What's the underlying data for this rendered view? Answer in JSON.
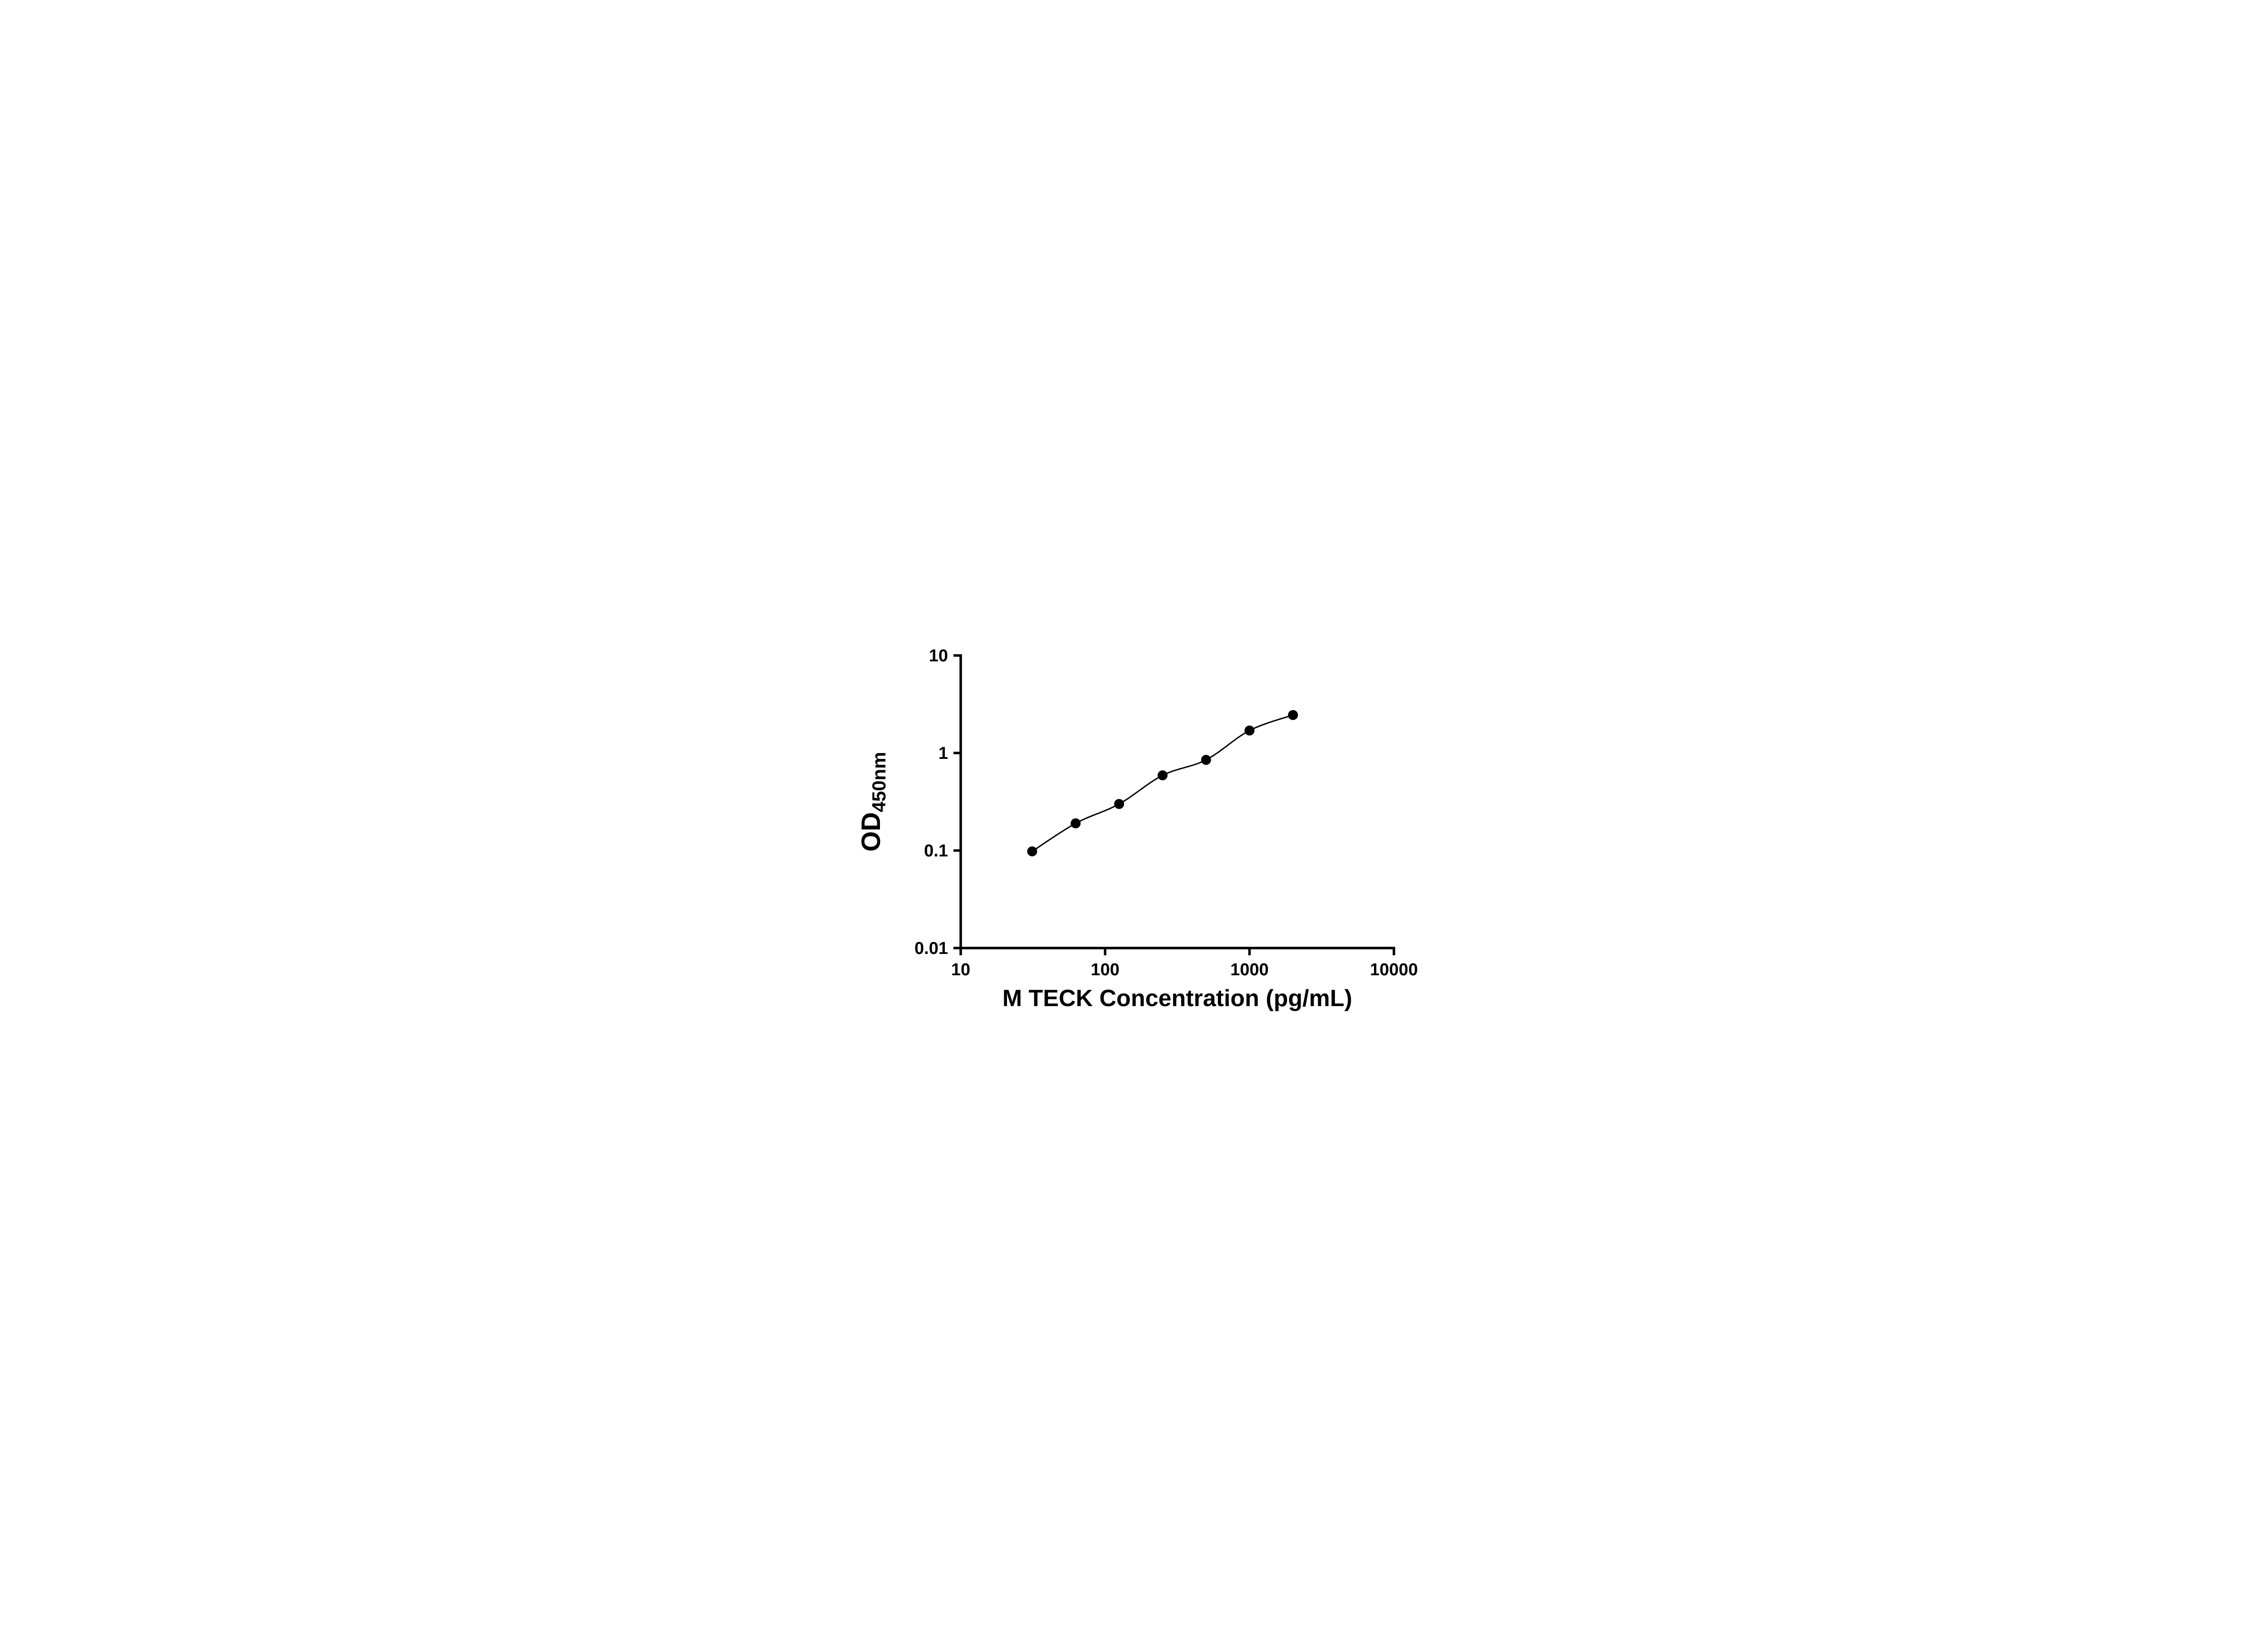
{
  "figure": {
    "background": "#ffffff",
    "axis_color": "#000000",
    "accessible_title": "M TECK ELISA standard curve"
  },
  "chart_data": {
    "type": "scatter",
    "title": "",
    "xlabel": "M TECK Concentration (pg/mL)",
    "ylabel": "OD450nm",
    "ylabel_parts": {
      "main": "OD",
      "sub": "450nm"
    },
    "x_scale": "log",
    "y_scale": "log",
    "xlim": [
      10,
      10000
    ],
    "ylim": [
      0.01,
      10
    ],
    "x_ticks": [
      10,
      100,
      1000,
      10000
    ],
    "x_tick_labels": [
      "10",
      "100",
      "1000",
      "10000"
    ],
    "y_ticks": [
      0.01,
      0.1,
      1,
      10
    ],
    "y_tick_labels": [
      "0.01",
      "0.1",
      "1",
      "10"
    ],
    "grid": false,
    "legend": "none",
    "has_fit_line": true,
    "marker_color": "#000000",
    "line_color": "#000000",
    "points": [
      {
        "x": 31.25,
        "y": 0.098
      },
      {
        "x": 62.5,
        "y": 0.19
      },
      {
        "x": 125,
        "y": 0.3
      },
      {
        "x": 250,
        "y": 0.59
      },
      {
        "x": 500,
        "y": 0.85
      },
      {
        "x": 1000,
        "y": 1.7
      },
      {
        "x": 2000,
        "y": 2.45
      }
    ]
  }
}
